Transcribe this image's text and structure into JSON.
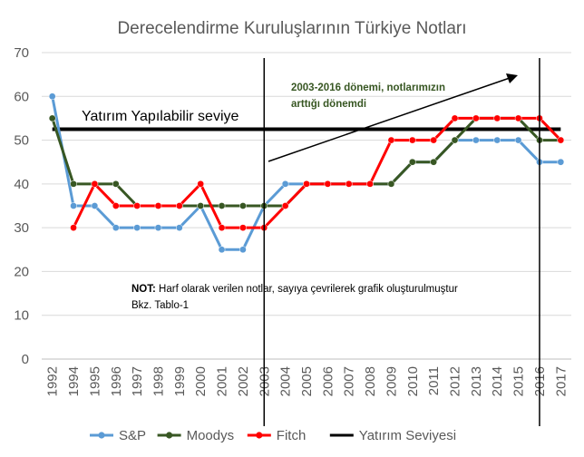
{
  "chart_data": {
    "type": "line",
    "title": "Derecelendirme Kuruluşlarının Türkiye Notları",
    "x": [
      "1992",
      "1994",
      "1995",
      "1996",
      "1997",
      "1998",
      "1999",
      "2000",
      "2001",
      "2002",
      "2003",
      "2004",
      "2005",
      "2006",
      "2007",
      "2008",
      "2009",
      "2010",
      "2011",
      "2012",
      "2013",
      "2014",
      "2015",
      "2016",
      "2017"
    ],
    "ylim": [
      0,
      70
    ],
    "yticks": [
      0,
      10,
      20,
      30,
      40,
      50,
      60,
      70
    ],
    "grid": true,
    "series": [
      {
        "name": "S&P",
        "color": "#5b9bd5",
        "values": [
          60,
          35,
          35,
          30,
          30,
          30,
          30,
          35,
          25,
          25,
          35,
          40,
          40,
          40,
          40,
          40,
          40,
          45,
          45,
          50,
          50,
          50,
          50,
          45,
          45
        ]
      },
      {
        "name": "Moodys",
        "color": "#385723",
        "values": [
          55,
          40,
          40,
          40,
          35,
          35,
          35,
          35,
          35,
          35,
          35,
          35,
          40,
          40,
          40,
          40,
          40,
          45,
          45,
          50,
          55,
          55,
          55,
          50,
          50
        ]
      },
      {
        "name": "Fitch",
        "color": "#ff0000",
        "values": [
          null,
          30,
          40,
          35,
          35,
          35,
          35,
          40,
          30,
          30,
          30,
          35,
          40,
          40,
          40,
          40,
          50,
          50,
          50,
          55,
          55,
          55,
          55,
          55,
          50
        ]
      },
      {
        "name": "Yatırım Seviyesi",
        "color": "#000000",
        "value": 52.5
      }
    ],
    "annotations": {
      "investment_label": "Yatırım Yapılabilir seviye",
      "period_line1": "2003-2016  dönemi, notlarımızın",
      "period_line2": "arttığı dönemdi",
      "note_bold": "NOT:",
      "note_line1": " Harf olarak verilen notlar, sayıya çevrilerek grafik oluşturulmuştur",
      "note_line2": "Bkz. Tablo-1"
    },
    "vertical_markers": [
      "2003",
      "2016"
    ],
    "legend_position": "bottom"
  }
}
